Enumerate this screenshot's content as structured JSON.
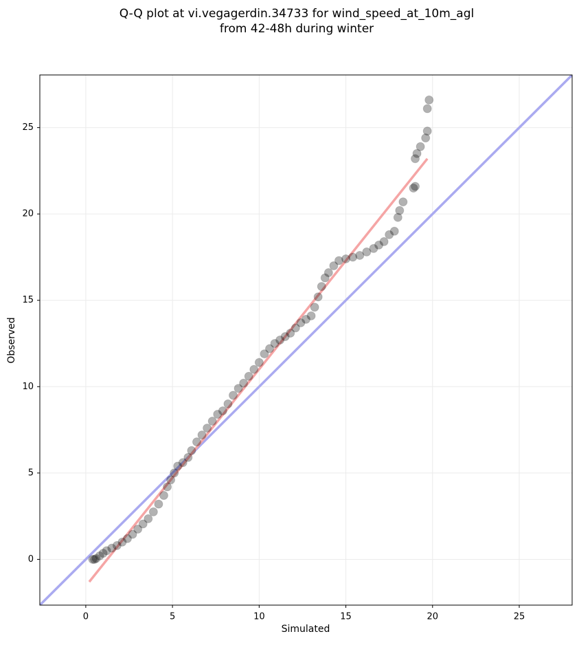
{
  "chart_data": {
    "type": "scatter",
    "title": [
      "Q-Q plot at vi.vegagerdin.34733 for wind_speed_at_10m_agl",
      "from 42-48h during winter"
    ],
    "x_label": "Simulated",
    "y_label": "Observed",
    "xlim": [
      -2.65,
      28.05
    ],
    "ylim": [
      -2.65,
      28.05
    ],
    "xticks": [
      0,
      5,
      10,
      15,
      20,
      25
    ],
    "yticks": [
      0,
      5,
      10,
      15,
      20,
      25
    ],
    "grid": true,
    "series": [
      {
        "color": "#000000",
        "x": [
          0.4,
          0.5,
          0.6,
          0.8,
          1.0,
          1.2,
          1.5,
          1.8,
          2.1,
          2.4,
          2.7,
          3.0,
          3.3,
          3.6,
          3.9,
          4.2,
          4.5,
          4.7,
          4.9,
          5.1,
          5.3,
          5.6,
          5.9,
          6.1,
          6.4,
          6.7,
          7.0,
          7.3,
          7.6,
          7.9,
          8.2,
          8.5,
          8.8,
          9.1,
          9.4,
          9.7,
          10.0,
          10.3,
          10.6,
          10.9,
          11.2,
          11.5,
          11.8,
          12.1,
          12.4,
          12.7,
          13.0,
          13.2,
          13.4,
          13.6,
          13.8,
          14.0,
          14.3,
          14.6,
          15.0,
          15.4,
          15.8,
          16.2,
          16.6,
          16.9,
          17.2,
          17.5,
          17.8,
          18.0,
          18.1,
          18.3,
          18.9,
          19.0,
          19.0,
          19.1,
          19.3,
          19.6,
          19.7,
          19.7,
          19.8
        ],
        "values": [
          0,
          0,
          0.05,
          0.2,
          0.35,
          0.5,
          0.65,
          0.8,
          1.0,
          1.2,
          1.45,
          1.75,
          2.05,
          2.35,
          2.75,
          3.2,
          3.7,
          4.2,
          4.6,
          5.0,
          5.4,
          5.6,
          5.9,
          6.3,
          6.8,
          7.2,
          7.6,
          8.0,
          8.4,
          8.6,
          9.0,
          9.5,
          9.9,
          10.2,
          10.6,
          11.0,
          11.4,
          11.9,
          12.2,
          12.5,
          12.7,
          12.9,
          13.1,
          13.4,
          13.7,
          13.9,
          14.1,
          14.6,
          15.2,
          15.8,
          16.3,
          16.6,
          17.0,
          17.3,
          17.4,
          17.5,
          17.6,
          17.8,
          18.0,
          18.2,
          18.4,
          18.8,
          19.0,
          19.8,
          20.2,
          20.7,
          21.5,
          21.6,
          23.2,
          23.5,
          23.9,
          24.4,
          24.8,
          26.1,
          26.6
        ]
      }
    ],
    "lines": [
      {
        "color": "#aaaaf0",
        "x": [
          -2.65,
          28.05
        ],
        "values": [
          -2.65,
          28.05
        ]
      },
      {
        "color": "#f5a5a5",
        "x": [
          0.2,
          19.7
        ],
        "values": [
          -1.3,
          23.2
        ]
      }
    ]
  }
}
